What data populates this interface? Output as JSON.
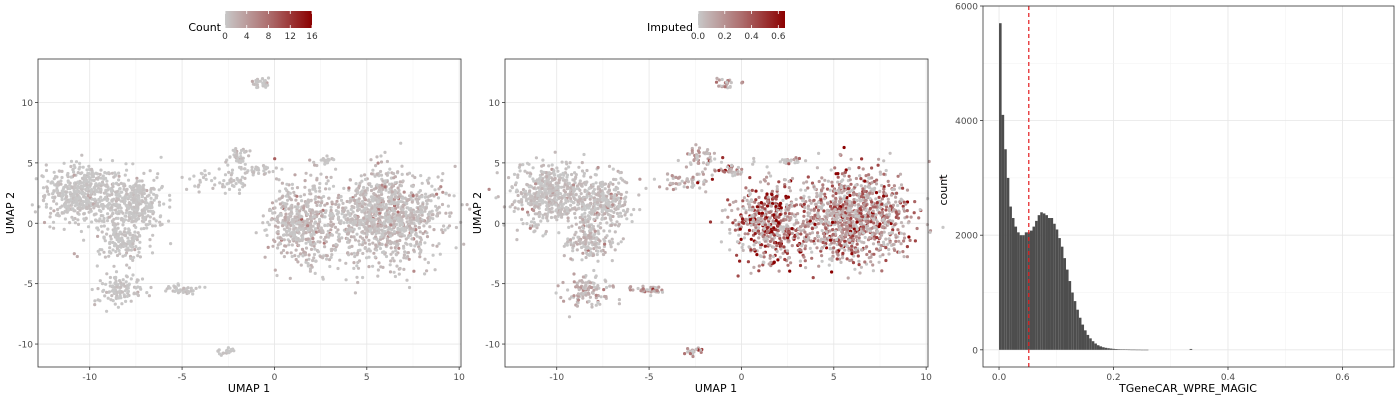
{
  "chart_data": [
    {
      "type": "scatter",
      "panel": "umap-count",
      "xlabel": "UMAP 1",
      "ylabel": "UMAP 2",
      "xlim": [
        -12.8,
        10.1
      ],
      "ylim": [
        -11.9,
        13.6
      ],
      "xticks": [
        -10,
        -5,
        0,
        5,
        10
      ],
      "yticks": [
        -10,
        -5,
        0,
        5,
        10
      ],
      "grid": true,
      "legend": {
        "title": "Count",
        "position": "top",
        "range": [
          0,
          16
        ],
        "ticks": [
          0,
          4,
          8,
          12,
          16
        ],
        "low_color": "#c8c8c8",
        "high_color": "#8b0000"
      },
      "clusters": [
        {
          "x": -10.3,
          "y": 2.4,
          "sx": 1.4,
          "sy": 1.7,
          "n": 520,
          "mean": 0.5
        },
        {
          "x": -7.5,
          "y": 1.6,
          "sx": 1.1,
          "sy": 1.5,
          "n": 300,
          "mean": 0.5
        },
        {
          "x": -8.2,
          "y": -1.6,
          "sx": 0.9,
          "sy": 1.0,
          "n": 150,
          "mean": 0.5
        },
        {
          "x": -8.3,
          "y": -5.5,
          "sx": 0.9,
          "sy": 0.9,
          "n": 110,
          "mean": 0.5
        },
        {
          "x": -5.0,
          "y": -5.5,
          "sx": 0.6,
          "sy": 0.25,
          "n": 40,
          "mean": 0.6
        },
        {
          "x": -3.0,
          "y": 3.5,
          "sx": 1.3,
          "sy": 0.6,
          "n": 60,
          "mean": 0.6
        },
        {
          "x": -2.0,
          "y": 5.4,
          "sx": 0.5,
          "sy": 0.6,
          "n": 45,
          "mean": 0.6
        },
        {
          "x": -0.7,
          "y": 4.4,
          "sx": 0.6,
          "sy": 0.3,
          "n": 30,
          "mean": 0.8
        },
        {
          "x": 2.7,
          "y": 5.2,
          "sx": 0.4,
          "sy": 0.2,
          "n": 20,
          "mean": 0.6
        },
        {
          "x": -0.8,
          "y": 11.7,
          "sx": 0.35,
          "sy": 0.3,
          "n": 25,
          "mean": 0.5
        },
        {
          "x": -2.6,
          "y": -10.6,
          "sx": 0.3,
          "sy": 0.2,
          "n": 20,
          "mean": 0.5
        },
        {
          "x": 1.5,
          "y": 0.0,
          "sx": 1.3,
          "sy": 2.3,
          "n": 500,
          "mean": 1.6
        },
        {
          "x": 6.0,
          "y": 0.5,
          "sx": 2.0,
          "sy": 2.5,
          "n": 1100,
          "mean": 1.3
        }
      ]
    },
    {
      "type": "scatter",
      "panel": "umap-imputed",
      "xlabel": "UMAP 1",
      "ylabel": "UMAP 2",
      "xlim": [
        -12.8,
        10.1
      ],
      "ylim": [
        -11.9,
        13.6
      ],
      "xticks": [
        -10,
        -5,
        0,
        5,
        10
      ],
      "yticks": [
        -10,
        -5,
        0,
        5,
        10
      ],
      "grid": true,
      "legend": {
        "title": "Imputed",
        "position": "top",
        "range": [
          0,
          0.65
        ],
        "ticks": [
          0.0,
          0.2,
          0.4,
          0.6
        ],
        "tick_labels": [
          "0.0",
          "0.2",
          "0.4",
          "0.6"
        ],
        "low_color": "#c8c8c8",
        "high_color": "#8b0000"
      },
      "clusters": [
        {
          "x": -10.3,
          "y": 2.4,
          "sx": 1.4,
          "sy": 1.7,
          "n": 520,
          "mean": 0.04
        },
        {
          "x": -7.5,
          "y": 1.6,
          "sx": 1.1,
          "sy": 1.5,
          "n": 300,
          "mean": 0.05
        },
        {
          "x": -8.2,
          "y": -1.6,
          "sx": 0.9,
          "sy": 1.0,
          "n": 150,
          "mean": 0.06
        },
        {
          "x": -8.3,
          "y": -5.5,
          "sx": 0.9,
          "sy": 0.9,
          "n": 110,
          "mean": 0.12
        },
        {
          "x": -5.0,
          "y": -5.5,
          "sx": 0.6,
          "sy": 0.25,
          "n": 40,
          "mean": 0.15
        },
        {
          "x": -3.0,
          "y": 3.5,
          "sx": 1.3,
          "sy": 0.6,
          "n": 60,
          "mean": 0.12
        },
        {
          "x": -2.0,
          "y": 5.4,
          "sx": 0.5,
          "sy": 0.6,
          "n": 45,
          "mean": 0.14
        },
        {
          "x": -0.7,
          "y": 4.4,
          "sx": 0.6,
          "sy": 0.3,
          "n": 30,
          "mean": 0.18
        },
        {
          "x": 2.7,
          "y": 5.2,
          "sx": 0.4,
          "sy": 0.2,
          "n": 20,
          "mean": 0.12
        },
        {
          "x": -0.8,
          "y": 11.7,
          "sx": 0.35,
          "sy": 0.3,
          "n": 25,
          "mean": 0.18
        },
        {
          "x": -2.6,
          "y": -10.6,
          "sx": 0.3,
          "sy": 0.2,
          "n": 20,
          "mean": 0.35
        },
        {
          "x": 1.5,
          "y": 0.0,
          "sx": 1.3,
          "sy": 2.3,
          "n": 500,
          "mean": 0.42
        },
        {
          "x": 6.0,
          "y": 0.5,
          "sx": 2.0,
          "sy": 2.5,
          "n": 1100,
          "mean": 0.28
        }
      ]
    },
    {
      "type": "bar",
      "panel": "histogram",
      "xlabel": "TGeneCAR_WPRE_MAGIC",
      "ylabel": "count",
      "xlim": [
        -0.028,
        0.69
      ],
      "ylim": [
        -300,
        6000
      ],
      "xticks": [
        0.0,
        0.2,
        0.4,
        0.6
      ],
      "xtick_labels": [
        "0.0",
        "0.2",
        "0.4",
        "0.6"
      ],
      "yticks": [
        0,
        2000,
        4000,
        6000
      ],
      "grid": true,
      "bar_color": "#4d4d4d",
      "binwidth": 0.0045,
      "bin_start": 0.0,
      "values": [
        5700,
        4100,
        3500,
        3000,
        2500,
        2300,
        2150,
        2050,
        2000,
        2000,
        2050,
        2050,
        2080,
        2150,
        2250,
        2350,
        2400,
        2380,
        2350,
        2300,
        2300,
        2200,
        2100,
        1950,
        1800,
        1600,
        1400,
        1200,
        1000,
        850,
        700,
        560,
        440,
        340,
        260,
        200,
        150,
        110,
        80,
        60,
        45,
        35,
        28,
        22,
        17,
        13,
        10,
        8,
        6,
        5,
        4,
        3,
        3,
        2,
        2,
        1,
        1,
        1,
        0,
        0,
        0,
        0,
        0,
        0,
        0,
        0,
        0,
        0,
        0,
        0,
        0,
        0,
        0,
        0,
        15
      ],
      "threshold": {
        "x": 0.052,
        "color": "#e41a1c",
        "style": "dashed"
      }
    }
  ]
}
